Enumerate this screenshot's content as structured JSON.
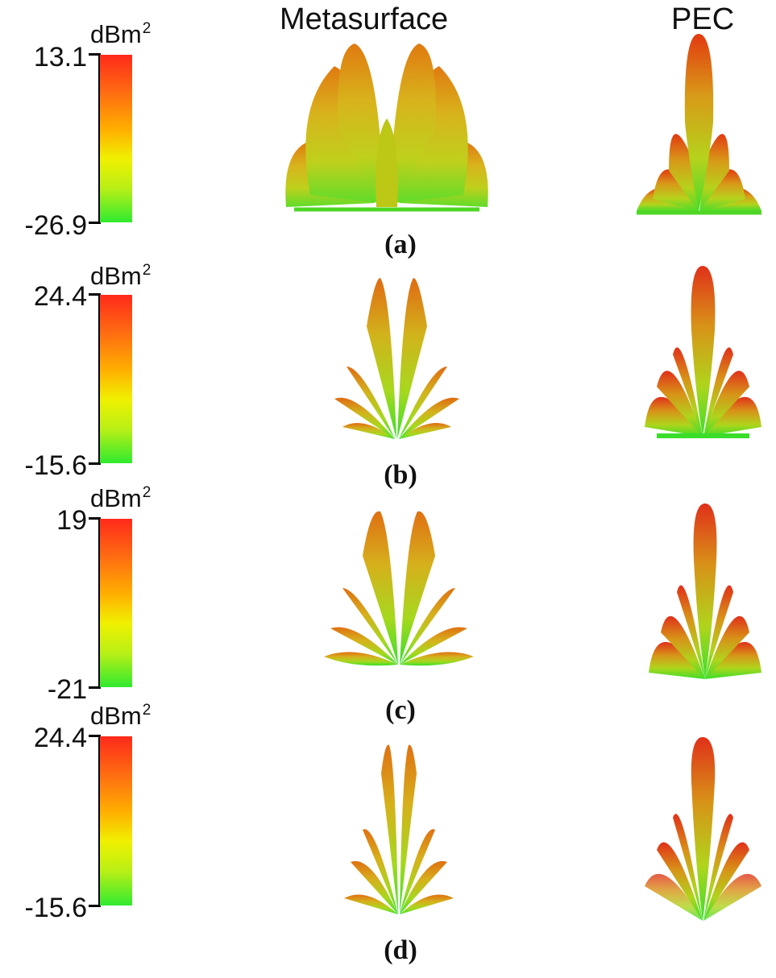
{
  "headers": {
    "metasurface": "Metasurface",
    "pec": "PEC"
  },
  "colors": {
    "high": "#ff2a1a",
    "mid": "#f0f000",
    "low": "#30ea30"
  },
  "panels": [
    {
      "label": "(a)",
      "unit": "dBm",
      "unit_exp": "2",
      "max": "13.1",
      "min": "-26.9"
    },
    {
      "label": "(b)",
      "unit": "dBm",
      "unit_exp": "2",
      "max": "24.4",
      "min": "-15.6"
    },
    {
      "label": "(c)",
      "unit": "dBm",
      "unit_exp": "2",
      "max": "19",
      "min": "-21"
    },
    {
      "label": "(d)",
      "unit": "dBm",
      "unit_exp": "2",
      "max": "24.4",
      "min": "-15.6"
    }
  ]
}
